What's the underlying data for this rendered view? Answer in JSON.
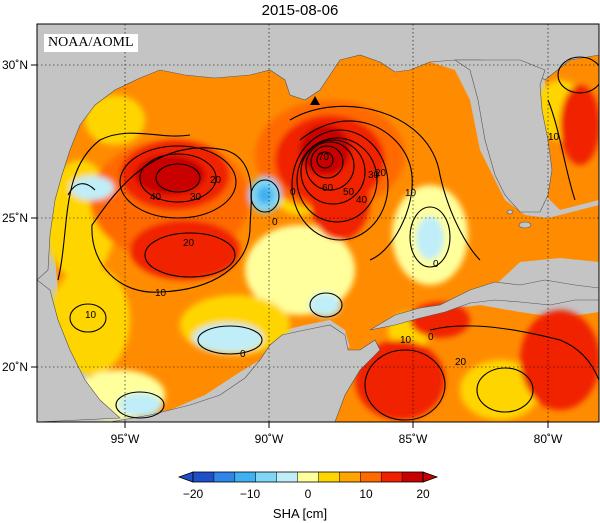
{
  "title": "2015-08-06",
  "credit": "NOAA/AOML",
  "lat_labels": [
    "30˚N",
    "25˚N",
    "20˚N"
  ],
  "lon_labels": [
    "95˚W",
    "90˚W",
    "85˚W",
    "80˚W"
  ],
  "colorbar": {
    "title": "SHA [cm]",
    "tick_labels": [
      "−20",
      "−10",
      "0",
      "10",
      "20"
    ],
    "colors": [
      "#1f4fc8",
      "#2f86e6",
      "#3fb0f0",
      "#7fd7f5",
      "#bfeef8",
      "#ffff9c",
      "#ffd500",
      "#ffa500",
      "#ff6a00",
      "#f02000",
      "#c80000"
    ]
  },
  "contour_labels": [
    "40",
    "30",
    "20",
    "20",
    "10",
    "10",
    "0",
    "0",
    "0",
    "70",
    "60",
    "50",
    "40",
    "30",
    "20",
    "10",
    "10",
    "0",
    "0",
    "20",
    "10"
  ],
  "colors": {
    "land": "#c4c4c4",
    "contour": "#000000",
    "grid": "#000000"
  }
}
